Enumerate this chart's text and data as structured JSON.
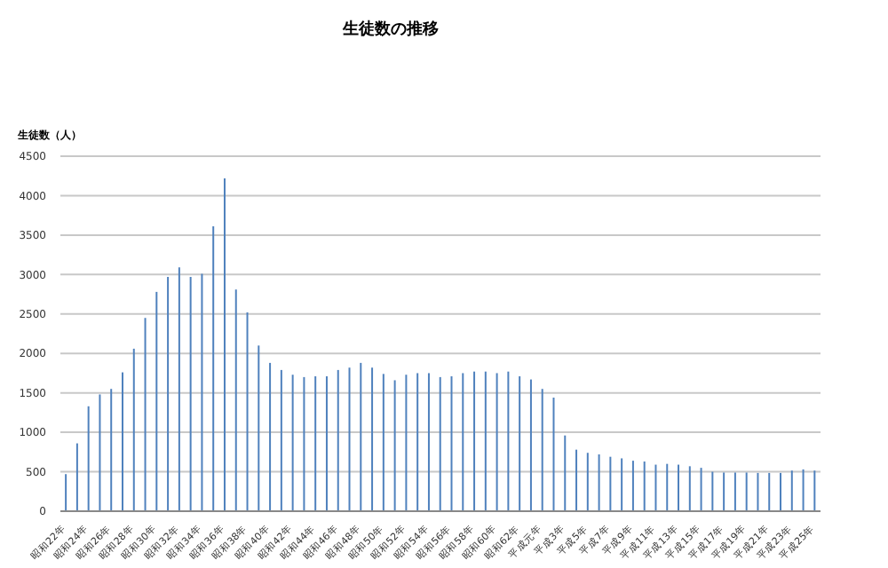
{
  "chart_data": {
    "type": "bar",
    "title": "生徒数の推移",
    "ylabel": "生徒数（人）",
    "categories": [
      "昭和22年",
      null,
      "昭和24年",
      null,
      "昭和26年",
      null,
      "昭和28年",
      null,
      "昭和30年",
      null,
      "昭和32年",
      null,
      "昭和34年",
      null,
      "昭和36年",
      null,
      "昭和38年",
      null,
      "昭和40年",
      null,
      "昭和42年",
      null,
      "昭和44年",
      null,
      "昭和46年",
      null,
      "昭和48年",
      null,
      "昭和50年",
      null,
      "昭和52年",
      null,
      "昭和54年",
      null,
      "昭和56年",
      null,
      "昭和58年",
      null,
      "昭和60年",
      null,
      "昭和62年",
      null,
      "平成元年",
      null,
      "平成3年",
      null,
      "平成5年",
      null,
      "平成7年",
      null,
      "平成9年",
      null,
      "平成11年",
      null,
      "平成13年",
      null,
      "平成15年",
      null,
      "平成17年",
      null,
      "平成19年",
      null,
      "平成21年",
      null,
      "平成23年",
      null,
      "平成25年"
    ],
    "values": [
      470,
      860,
      1330,
      1480,
      1550,
      1760,
      2060,
      2450,
      2780,
      2970,
      3090,
      2970,
      3010,
      3610,
      4220,
      2810,
      2520,
      2100,
      1880,
      1790,
      1730,
      1700,
      1710,
      1710,
      1790,
      1820,
      1880,
      1820,
      1740,
      1660,
      1730,
      1750,
      1750,
      1700,
      1710,
      1750,
      1770,
      1770,
      1750,
      1770,
      1710,
      1670,
      1550,
      1440,
      960,
      780,
      740,
      720,
      690,
      670,
      640,
      630,
      590,
      600,
      590,
      570,
      550,
      500,
      490,
      490,
      490,
      485,
      485,
      485,
      515,
      530,
      515
    ],
    "color": "#4f81bd",
    "ylim": [
      0,
      4500
    ],
    "yticks": [
      0,
      500,
      1000,
      1500,
      2000,
      2500,
      3000,
      3500,
      4000,
      4500
    ],
    "grid": "y"
  }
}
